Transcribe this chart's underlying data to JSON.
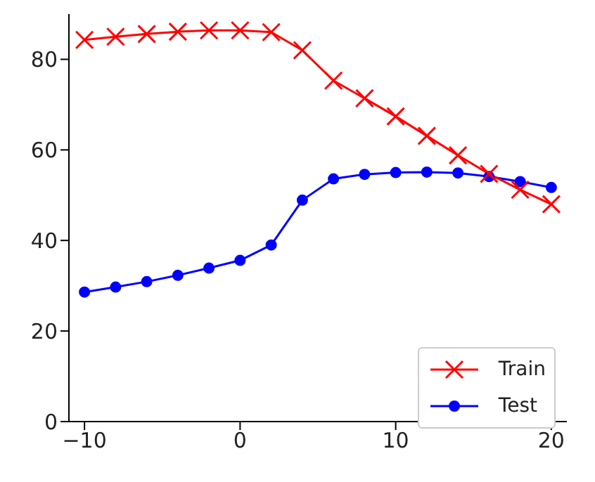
{
  "chart_data": {
    "type": "line",
    "x": [
      -10,
      -8,
      -6,
      -4,
      -2,
      0,
      2,
      4,
      6,
      8,
      10,
      12,
      14,
      16,
      18,
      20
    ],
    "series": [
      {
        "name": "Train",
        "color": "#ff0000",
        "marker": "cross",
        "values": [
          84.3,
          85,
          85.6,
          86.1,
          86.4,
          86.4,
          86,
          82,
          75.3,
          71.4,
          67.4,
          63.1,
          58.8,
          54.7,
          51.2,
          48
        ]
      },
      {
        "name": "Test",
        "color": "#0000ff",
        "marker": "circle",
        "values": [
          28.6,
          29.7,
          30.9,
          32.3,
          33.9,
          35.6,
          39,
          48.9,
          53.6,
          54.6,
          55,
          55.1,
          54.9,
          54.1,
          53,
          51.7
        ]
      }
    ],
    "xlim": [
      -11,
      21
    ],
    "xticks": [
      {
        "value": -10,
        "label": "−10"
      },
      0,
      10,
      20
    ],
    "ylim": [
      0,
      90
    ],
    "yticks": [
      0,
      20,
      40,
      60,
      80
    ],
    "grid": false,
    "legend": "bottom right",
    "line_style": "solid"
  }
}
